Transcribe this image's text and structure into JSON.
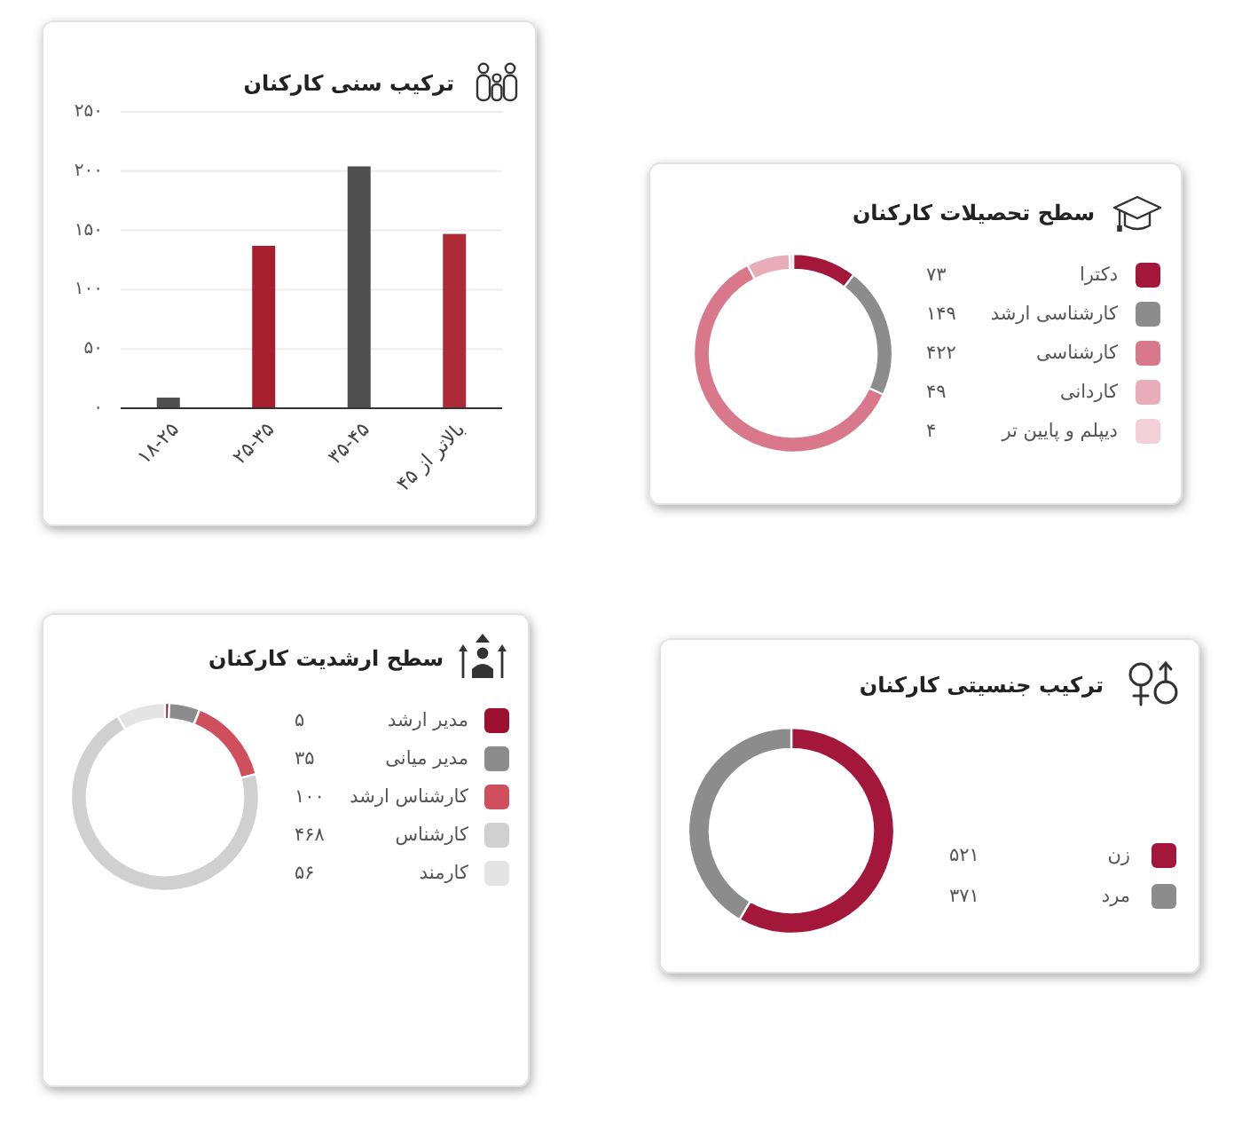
{
  "chart_data": [
    {
      "type": "bar",
      "title": "ترکیب سنی کارکنان",
      "categories": [
        "۱۸-۲۵",
        "۲۵-۳۵",
        "۳۵-۴۵",
        "بالاتر از ۴۵"
      ],
      "values": [
        9,
        137,
        204,
        147
      ],
      "colors": [
        "#4f4f4f",
        "#a61f2e",
        "#4f4f4f",
        "#ad2b37"
      ],
      "ylim": [
        0,
        250
      ],
      "yticks": [
        {
          "value": 0,
          "label": "۰"
        },
        {
          "value": 50,
          "label": "۵۰"
        },
        {
          "value": 100,
          "label": "۱۰۰"
        },
        {
          "value": 150,
          "label": "۱۵۰"
        },
        {
          "value": 200,
          "label": "۲۰۰"
        },
        {
          "value": 250,
          "label": "۲۵۰"
        }
      ],
      "grid": "y"
    },
    {
      "type": "donut",
      "title": "سطح تحصیلات کارکنان",
      "categories": [
        "دکترا",
        "کارشناسی ارشد",
        "کارشناسی",
        "کاردانی",
        "دیپلم و پایین تر"
      ],
      "values": [
        73,
        149,
        422,
        49,
        4
      ],
      "value_labels": [
        "۷۳",
        "۱۴۹",
        "۴۲۲",
        "۴۹",
        "۴"
      ],
      "colors": [
        "#a2173a",
        "#8c8c8c",
        "#d9788a",
        "#e9adb9",
        "#f3d0d7"
      ],
      "legend": "right"
    },
    {
      "type": "donut",
      "title": "سطح ارشدیت کارکنان",
      "categories": [
        "مدیر ارشد",
        "مدیر میانی",
        "کارشناس ارشد",
        "کارشناس",
        "کارمند"
      ],
      "values": [
        5,
        35,
        100,
        468,
        56
      ],
      "value_labels": [
        "۵",
        "۳۵",
        "۱۰۰",
        "۴۶۸",
        "۵۶"
      ],
      "colors": [
        "#9c1030",
        "#8c8c8c",
        "#d04f5d",
        "#d0d0d0",
        "#e4e4e4"
      ],
      "legend": "right"
    },
    {
      "type": "donut",
      "title": "ترکیب جنسیتی کارکنان",
      "categories": [
        "زن",
        "مرد"
      ],
      "values": [
        521,
        371
      ],
      "value_labels": [
        "۵۲۱",
        "۳۷۱"
      ],
      "colors": [
        "#a3173a",
        "#8c8c8c"
      ],
      "legend": "bottom right"
    }
  ]
}
